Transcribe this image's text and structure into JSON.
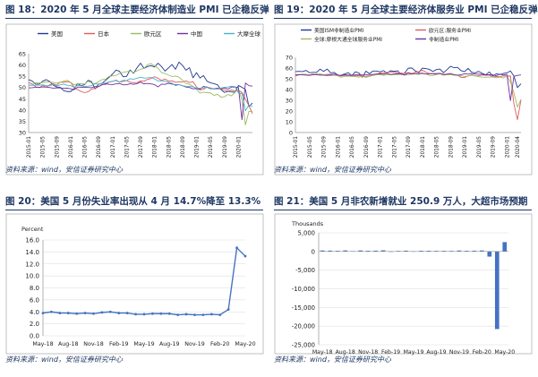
{
  "panels": [
    {
      "title": "图 18：2020 年 5 月全球主要经济体制造业 PMI 已企稳反弹",
      "source": "资料来源：wind，安信证券研究中心"
    },
    {
      "title": "图 19：2020 年 5 月全球主要经济体服务业 PMI 已企稳反弹",
      "source": "资料来源：wind，安信证券研究中心"
    },
    {
      "title": "图 20：美国 5 月份失业率出现从 4 月 14.7%降至 13.3%",
      "source": "资料来源：wind，安信证券研究中心"
    },
    {
      "title": "图 21：美国 5 月非农新增就业 250.9 万人，大超市场预期",
      "source": "资料来源：wind，安信证券研究中心"
    }
  ],
  "chart_data": [
    {
      "type": "line",
      "title": "图 18：2020 年 5 月全球主要经济体制造业 PMI 已企稳反弹",
      "ylim": [
        30,
        65
      ],
      "yticks": [
        30,
        35,
        40,
        45,
        50,
        55,
        60,
        65
      ],
      "xticks": [
        "2015-01",
        "2015-05",
        "2015-09",
        "2016-01",
        "2016-05",
        "2016-09",
        "2017-01",
        "2017-05",
        "2017-09",
        "2018-01",
        "2018-05",
        "2018-09",
        "2019-01",
        "2019-05",
        "2019-09",
        "2020-01"
      ],
      "legend_position": "top",
      "grid": false,
      "series": [
        {
          "name": "美国",
          "color": "#1f3a93",
          "values": [
            53.5,
            52.9,
            51.5,
            51.5,
            52.8,
            53.5,
            52.7,
            51.1,
            50.2,
            50.1,
            48.6,
            48.2,
            48.2,
            49.5,
            51.8,
            50.8,
            51.3,
            53.2,
            52.6,
            49.4,
            51.5,
            51.9,
            53.2,
            54.5,
            56.0,
            57.7,
            57.2,
            54.8,
            54.9,
            57.8,
            56.3,
            58.8,
            60.8,
            58.5,
            59.3,
            59.7,
            59.1,
            60.8,
            59.3,
            57.3,
            58.7,
            60.2,
            58.1,
            61.3,
            59.8,
            57.7,
            58.8,
            54.3,
            56.6,
            54.2,
            55.3,
            52.8,
            52.1,
            51.7,
            51.2,
            49.1,
            47.8,
            48.3,
            48.1,
            47.8,
            50.9,
            50.1,
            49.1,
            41.5,
            43.1
          ]
        },
        {
          "name": "日本",
          "color": "#e05a5a",
          "values": [
            52.2,
            51.6,
            50.3,
            49.9,
            50.9,
            50.1,
            51.2,
            51.7,
            51.0,
            52.4,
            52.3,
            52.6,
            52.3,
            50.1,
            49.1,
            48.2,
            47.7,
            48.1,
            49.3,
            49.5,
            50.4,
            51.4,
            51.3,
            52.4,
            52.7,
            53.3,
            52.4,
            52.7,
            53.1,
            52.4,
            52.1,
            52.2,
            52.9,
            52.8,
            53.6,
            54.0,
            54.8,
            54.1,
            53.1,
            53.8,
            52.8,
            53.0,
            52.3,
            52.5,
            52.5,
            52.9,
            52.2,
            52.6,
            50.3,
            48.9,
            49.2,
            50.2,
            49.8,
            49.3,
            49.4,
            49.3,
            48.9,
            48.4,
            48.9,
            48.4,
            48.8,
            47.8,
            44.8,
            41.9,
            38.4
          ]
        },
        {
          "name": "欧元区",
          "color": "#9dbb61",
          "values": [
            51.0,
            51.0,
            52.2,
            52.0,
            52.2,
            52.5,
            52.4,
            52.3,
            52.0,
            52.3,
            52.8,
            53.2,
            52.3,
            51.2,
            51.6,
            51.7,
            51.5,
            52.8,
            52.0,
            51.7,
            52.6,
            53.5,
            53.7,
            54.9,
            55.2,
            55.4,
            56.2,
            56.7,
            57.0,
            57.4,
            56.6,
            57.4,
            58.1,
            58.5,
            60.1,
            60.6,
            59.6,
            58.6,
            56.6,
            56.2,
            55.5,
            54.9,
            55.1,
            54.6,
            53.2,
            51.8,
            51.4,
            50.5,
            49.3,
            47.5,
            47.9,
            47.7,
            47.6,
            46.5,
            47.0,
            45.7,
            45.9,
            46.9,
            46.3,
            47.9,
            49.2,
            44.5,
            33.4,
            39.4,
            39.4
          ]
        },
        {
          "name": "中国",
          "color": "#7030a0",
          "values": [
            49.8,
            49.9,
            50.1,
            50.1,
            50.2,
            50.2,
            50.0,
            49.7,
            49.8,
            49.8,
            49.6,
            49.7,
            49.4,
            49.0,
            50.2,
            50.1,
            50.1,
            50.0,
            49.9,
            50.4,
            50.4,
            51.2,
            51.7,
            51.4,
            51.3,
            51.6,
            51.8,
            51.2,
            51.2,
            51.7,
            51.4,
            51.7,
            52.4,
            51.6,
            51.8,
            51.6,
            51.3,
            50.3,
            51.5,
            51.4,
            51.9,
            51.5,
            51.2,
            51.3,
            50.8,
            50.2,
            50.0,
            49.4,
            49.5,
            49.2,
            50.5,
            50.1,
            49.4,
            49.4,
            49.7,
            49.5,
            49.8,
            49.3,
            50.2,
            50.2,
            50.0,
            35.7,
            52.0,
            50.8,
            50.6
          ]
        },
        {
          "name": "大摩全球",
          "color": "#4bb3c6",
          "values": [
            51.0,
            51.0,
            51.0,
            51.0,
            51.2,
            50.8,
            50.8,
            51.3,
            50.6,
            51.2,
            51.5,
            51.0,
            50.8,
            50.1,
            51.0,
            50.7,
            50.5,
            50.6,
            50.8,
            51.7,
            51.4,
            51.9,
            52.0,
            52.5,
            52.8,
            53.1,
            52.4,
            53.2,
            53.1,
            53.9,
            53.7,
            54.1,
            54.6,
            54.2,
            54.3,
            54.5,
            53.8,
            52.9,
            53.0,
            52.8,
            52.3,
            52.0,
            50.8,
            51.3,
            50.8,
            50.5,
            50.5,
            50.3,
            49.7,
            49.7,
            49.8,
            50.3,
            49.5,
            49.3,
            49.4,
            49.7,
            50.1,
            50.2,
            50.6,
            50.4,
            47.6,
            47.3,
            39.7,
            42.3,
            41.5
          ]
        }
      ]
    },
    {
      "type": "line",
      "title": "图 19：2020 年 5 月全球主要经济体服务业 PMI 已企稳反弹",
      "ylim": [
        0,
        70
      ],
      "yticks": [
        0,
        10,
        20,
        30,
        40,
        50,
        60,
        70
      ],
      "xticks": [
        "2015-01",
        "2015-05",
        "2015-09",
        "2016-01",
        "2016-05",
        "2016-09",
        "2017-01",
        "2017-05",
        "2017-09",
        "2018-01",
        "2018-05",
        "2018-09",
        "2019-01",
        "2019-05",
        "2019-09",
        "2020-01",
        "2020-04"
      ],
      "legend_position": "top",
      "grid": false,
      "series": [
        {
          "name": "美国ISM非制造业PMI",
          "color": "#1f3a93",
          "values": [
            56.7,
            56.9,
            56.7,
            57.8,
            55.7,
            56.0,
            56.0,
            59.0,
            56.9,
            59.1,
            55.6,
            55.9,
            53.5,
            53.4,
            54.5,
            55.7,
            52.9,
            56.5,
            55.5,
            51.4,
            57.1,
            54.8,
            57.2,
            57.2,
            56.5,
            57.6,
            55.2,
            57.5,
            56.9,
            57.4,
            53.9,
            55.3,
            59.8,
            60.1,
            57.4,
            55.9,
            59.9,
            59.5,
            58.8,
            56.8,
            58.6,
            59.1,
            55.7,
            58.5,
            61.6,
            60.3,
            60.7,
            57.6,
            56.7,
            59.7,
            56.1,
            55.5,
            56.9,
            55.1,
            53.7,
            56.4,
            52.6,
            54.7,
            53.9,
            55.0,
            55.5,
            57.3,
            52.5,
            41.8,
            45.4
          ]
        },
        {
          "name": "欧元区:服务业PMI",
          "color": "#e05a5a",
          "values": [
            52.7,
            53.7,
            54.2,
            54.1,
            53.6,
            54.4,
            54.0,
            54.4,
            53.7,
            54.1,
            54.2,
            54.2,
            53.6,
            53.3,
            53.1,
            53.1,
            53.3,
            52.8,
            52.9,
            52.8,
            52.2,
            52.8,
            53.8,
            53.7,
            55.6,
            55.5,
            56.0,
            56.4,
            56.3,
            55.4,
            55.4,
            54.7,
            55.8,
            55.0,
            56.2,
            56.6,
            58.0,
            56.2,
            54.9,
            54.7,
            53.8,
            55.2,
            54.2,
            54.4,
            54.7,
            53.4,
            53.4,
            51.2,
            51.2,
            52.8,
            53.3,
            52.8,
            52.9,
            53.6,
            53.2,
            53.5,
            51.6,
            52.2,
            51.9,
            52.8,
            52.5,
            52.6,
            26.4,
            12.0,
            30.5
          ]
        },
        {
          "name": "全球:摩根大通全球服务业PMI",
          "color": "#9dbb61",
          "values": [
            53.8,
            53.9,
            54.1,
            54.2,
            53.5,
            53.9,
            54.6,
            53.9,
            53.9,
            53.4,
            53.0,
            53.3,
            52.8,
            51.4,
            52.4,
            52.5,
            52.2,
            52.1,
            51.5,
            52.3,
            51.3,
            52.2,
            53.2,
            53.7,
            53.9,
            53.3,
            53.7,
            53.7,
            53.9,
            53.7,
            54.3,
            53.6,
            53.9,
            54.4,
            54.8,
            54.0,
            54.8,
            54.5,
            53.2,
            53.0,
            54.1,
            54.6,
            53.4,
            53.8,
            53.8,
            53.4,
            53.1,
            52.8,
            52.3,
            52.5,
            53.7,
            52.8,
            51.9,
            51.6,
            51.4,
            51.6,
            51.6,
            51.0,
            51.6,
            50.8,
            52.7,
            47.1,
            37.0,
            23.7,
            30.9
          ]
        },
        {
          "name": "非制造业PMI",
          "color": "#7030a0",
          "values": [
            53.7,
            53.9,
            53.7,
            53.4,
            53.2,
            53.8,
            53.9,
            53.4,
            53.4,
            53.1,
            53.6,
            54.4,
            53.5,
            52.7,
            53.8,
            53.5,
            53.1,
            53.7,
            53.9,
            53.5,
            53.7,
            54.0,
            54.0,
            54.5,
            54.6,
            54.2,
            55.1,
            54.0,
            54.5,
            54.9,
            54.5,
            53.4,
            55.4,
            54.3,
            54.8,
            55.0,
            55.3,
            54.4,
            54.6,
            54.8,
            54.9,
            55.0,
            54.0,
            54.2,
            54.9,
            53.9,
            53.4,
            53.8,
            54.7,
            54.3,
            54.8,
            54.3,
            54.3,
            54.2,
            53.7,
            53.8,
            53.7,
            52.8,
            54.4,
            53.5,
            54.1,
            29.6,
            52.3,
            53.2,
            53.6
          ]
        }
      ]
    },
    {
      "type": "line",
      "title": "图 20：美国 5 月份失业率出现从 4 月 14.7%降至 13.3%",
      "ylabel": "Percent",
      "ylim": [
        0,
        16
      ],
      "yticks": [
        0.0,
        2.0,
        4.0,
        6.0,
        8.0,
        10.0,
        12.0,
        14.0,
        16.0
      ],
      "xticks": [
        "May-18",
        "Aug-18",
        "Nov-18",
        "Feb-19",
        "May-19",
        "Aug-19",
        "Nov-19",
        "Feb-20",
        "May-20"
      ],
      "legend_position": "none",
      "grid": true,
      "series": [
        {
          "name": "",
          "color": "#4472c4",
          "x": [
            "May-18",
            "Jun-18",
            "Jul-18",
            "Aug-18",
            "Sep-18",
            "Oct-18",
            "Nov-18",
            "Dec-18",
            "Jan-19",
            "Feb-19",
            "Mar-19",
            "Apr-19",
            "May-19",
            "Jun-19",
            "Jul-19",
            "Aug-19",
            "Sep-19",
            "Oct-19",
            "Nov-19",
            "Dec-19",
            "Jan-20",
            "Feb-20",
            "Mar-20",
            "Apr-20",
            "May-20"
          ],
          "values": [
            3.8,
            4.0,
            3.8,
            3.8,
            3.7,
            3.8,
            3.7,
            3.9,
            4.0,
            3.8,
            3.8,
            3.6,
            3.6,
            3.7,
            3.7,
            3.7,
            3.5,
            3.6,
            3.5,
            3.5,
            3.6,
            3.5,
            4.4,
            14.7,
            13.3
          ]
        }
      ]
    },
    {
      "type": "bar",
      "title": "图 21：美国 5 月非农新增就业 250.9 万人，大超市场预期",
      "ylabel": "Thousands",
      "ylim": [
        -25000,
        5000
      ],
      "yticks": [
        -25000,
        -20000,
        -15000,
        -10000,
        -5000,
        0,
        5000
      ],
      "xticks": [
        "May-18",
        "Aug-18",
        "Nov-18",
        "Feb-19",
        "May-19",
        "Aug-19",
        "Nov-19",
        "Feb-20",
        "May-20"
      ],
      "legend_position": "none",
      "grid": true,
      "categories": [
        "May-18",
        "Jun-18",
        "Jul-18",
        "Aug-18",
        "Sep-18",
        "Oct-18",
        "Nov-18",
        "Dec-18",
        "Jan-19",
        "Feb-19",
        "Mar-19",
        "Apr-19",
        "May-19",
        "Jun-19",
        "Jul-19",
        "Aug-19",
        "Sep-19",
        "Oct-19",
        "Nov-19",
        "Dec-19",
        "Jan-20",
        "Feb-20",
        "Mar-20",
        "Apr-20",
        "May-20"
      ],
      "series": [
        {
          "name": "",
          "color": "#4472c4",
          "values": [
            270,
            235,
            178,
            286,
            108,
            277,
            196,
            227,
            312,
            33,
            153,
            224,
            72,
            193,
            194,
            168,
            180,
            156,
            256,
            184,
            214,
            275,
            -1373,
            -20787,
            2509
          ]
        }
      ]
    }
  ]
}
